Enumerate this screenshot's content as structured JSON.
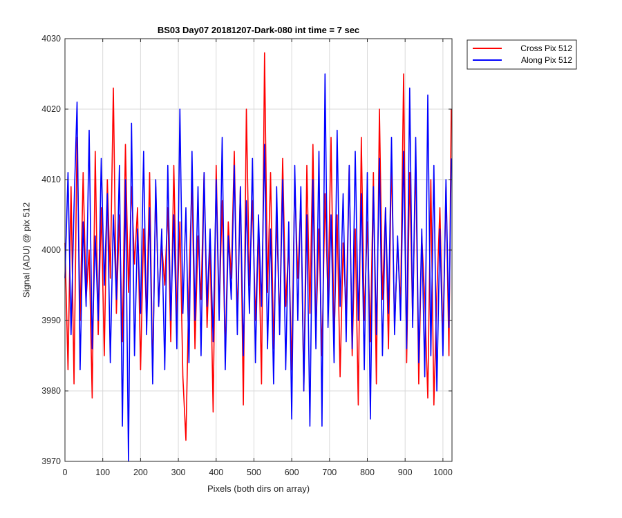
{
  "chart_data": {
    "type": "line",
    "title": "BS03 Day07 20181207-Dark-080 int time = 7 sec",
    "xlabel": "Pixels (both dirs on array)",
    "ylabel": "Signal (ADU) @ pix 512",
    "xlim": [
      0,
      1024
    ],
    "ylim": [
      3970,
      4030
    ],
    "xticks": [
      0,
      100,
      200,
      300,
      400,
      500,
      600,
      700,
      800,
      900,
      1000
    ],
    "yticks": [
      3970,
      3980,
      3990,
      4000,
      4010,
      4020,
      4030
    ],
    "grid": true,
    "legend_position": "outside-top-right",
    "series": [
      {
        "name": "Cross Pix 512",
        "color": "#ff0000",
        "x": [
          0,
          8,
          16,
          24,
          32,
          40,
          48,
          56,
          64,
          72,
          80,
          88,
          96,
          104,
          112,
          120,
          128,
          136,
          144,
          152,
          160,
          168,
          176,
          184,
          192,
          200,
          208,
          216,
          224,
          232,
          240,
          248,
          256,
          264,
          272,
          280,
          288,
          296,
          304,
          312,
          320,
          328,
          336,
          344,
          352,
          360,
          368,
          376,
          384,
          392,
          400,
          408,
          416,
          424,
          432,
          440,
          448,
          456,
          464,
          472,
          480,
          488,
          496,
          504,
          512,
          520,
          528,
          536,
          544,
          552,
          560,
          568,
          576,
          584,
          592,
          600,
          608,
          616,
          624,
          632,
          640,
          648,
          656,
          664,
          672,
          680,
          688,
          696,
          704,
          712,
          720,
          728,
          736,
          744,
          752,
          760,
          768,
          776,
          784,
          792,
          800,
          808,
          816,
          824,
          832,
          840,
          848,
          856,
          864,
          872,
          880,
          888,
          896,
          904,
          912,
          920,
          928,
          936,
          944,
          952,
          960,
          968,
          976,
          984,
          992,
          1000,
          1008,
          1016,
          1022
        ],
        "y": [
          4001,
          3983,
          4009,
          3981,
          4016,
          3990,
          4011,
          3993,
          4000,
          3979,
          4014,
          3988,
          4006,
          3985,
          4010,
          3996,
          4023,
          3991,
          4005,
          3987,
          4015,
          3994,
          4009,
          3998,
          4006,
          3983,
          4003,
          3990,
          4011,
          3982,
          4009,
          3992,
          4001,
          3995,
          4006,
          3987,
          4012,
          3990,
          4004,
          3982,
          3973,
          3995,
          4010,
          3986,
          4002,
          3993,
          4011,
          3989,
          4001,
          3977,
          4012,
          3991,
          4007,
          3985,
          4004,
          3996,
          4014,
          3990,
          4009,
          3978,
          4020,
          3995,
          4007,
          3990,
          4003,
          3981,
          4028,
          3994,
          4011,
          3986,
          4005,
          3989,
          4013,
          3992,
          4001,
          3983,
          4010,
          3996,
          4007,
          3980,
          4012,
          3991,
          4015,
          3988,
          4003,
          3985,
          4008,
          3993,
          4016,
          3987,
          4005,
          3982,
          4001,
          3991,
          4012,
          3985,
          4003,
          3978,
          4016,
          3990,
          4004,
          3987,
          4011,
          3981,
          4020,
          3993,
          4006,
          3986,
          4013,
          3989,
          4001,
          3992,
          4025,
          3984,
          4011,
          3990,
          4013,
          3981,
          4002,
          3993,
          3979,
          4010,
          3978,
          3994,
          4006,
          3987,
          4009,
          3985,
          4020
        ]
      },
      {
        "name": "Along Pix 512",
        "color": "#0000ff",
        "x": [
          0,
          8,
          16,
          24,
          32,
          40,
          48,
          56,
          64,
          72,
          80,
          88,
          96,
          104,
          112,
          120,
          128,
          136,
          144,
          152,
          160,
          168,
          176,
          184,
          192,
          200,
          208,
          216,
          224,
          232,
          240,
          248,
          256,
          264,
          272,
          280,
          288,
          296,
          304,
          312,
          320,
          328,
          336,
          344,
          352,
          360,
          368,
          376,
          384,
          392,
          400,
          408,
          416,
          424,
          432,
          440,
          448,
          456,
          464,
          472,
          480,
          488,
          496,
          504,
          512,
          520,
          528,
          536,
          544,
          552,
          560,
          568,
          576,
          584,
          592,
          600,
          608,
          616,
          624,
          632,
          640,
          648,
          656,
          664,
          672,
          680,
          688,
          696,
          704,
          712,
          720,
          728,
          736,
          744,
          752,
          760,
          768,
          776,
          784,
          792,
          800,
          808,
          816,
          824,
          832,
          840,
          848,
          856,
          864,
          872,
          880,
          888,
          896,
          904,
          912,
          920,
          928,
          936,
          944,
          952,
          960,
          968,
          976,
          984,
          992,
          1000,
          1008,
          1016,
          1022
        ],
        "y": [
          3996,
          4011,
          3988,
          4006,
          4021,
          3983,
          4004,
          3992,
          4017,
          3986,
          4002,
          3990,
          4013,
          3995,
          4008,
          3984,
          4005,
          3993,
          4012,
          3975,
          4010,
          3970,
          4018,
          3985,
          4003,
          3991,
          4014,
          3988,
          4006,
          3981,
          4010,
          3992,
          4003,
          3983,
          4012,
          3990,
          4005,
          3986,
          4020,
          3991,
          4006,
          3984,
          4014,
          3990,
          4009,
          3985,
          4011,
          3992,
          4003,
          3987,
          4010,
          3990,
          4016,
          3983,
          4002,
          3993,
          4012,
          3988,
          4009,
          3985,
          4007,
          3991,
          4013,
          3984,
          4005,
          3992,
          4015,
          3986,
          4003,
          3981,
          4009,
          3988,
          4010,
          3983,
          4004,
          3976,
          4012,
          3990,
          4009,
          3980,
          4005,
          3975,
          4010,
          3986,
          4014,
          3975,
          4025,
          3989,
          4005,
          3984,
          4017,
          3992,
          4008,
          3987,
          4012,
          3986,
          4014,
          3990,
          4008,
          3983,
          4011,
          3976,
          4009,
          3988,
          4013,
          3985,
          4006,
          3991,
          4016,
          3988,
          4002,
          3990,
          4014,
          3986,
          4023,
          3989,
          4016,
          3984,
          4003,
          3982,
          4022,
          3985,
          4012,
          3980,
          4003,
          3985,
          4010,
          3989,
          4013
        ]
      }
    ]
  }
}
